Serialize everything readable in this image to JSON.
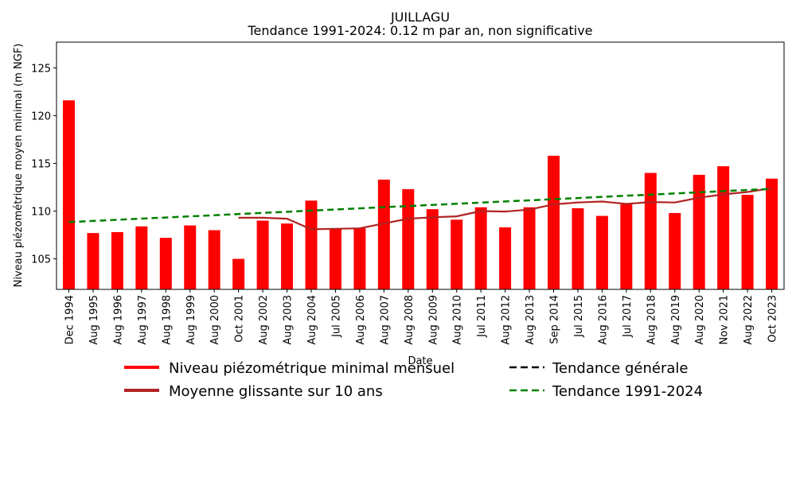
{
  "chart_data": {
    "type": "bar",
    "title": "JUILLAGU",
    "subtitle": "Tendance 1991-2024: 0.12 m par an, non significative",
    "xlabel": "Date",
    "ylabel": "Niveau piézométrique moyen minimal (m NGF)",
    "ylim": [
      101.8,
      127.7
    ],
    "yticks": [
      105,
      110,
      115,
      120,
      125
    ],
    "categories": [
      "Dec 1994",
      "Aug 1995",
      "Aug 1996",
      "Aug 1997",
      "Aug 1998",
      "Aug 1999",
      "Aug 2000",
      "Oct 2001",
      "Aug 2002",
      "Aug 2003",
      "Aug 2004",
      "Jul 2005",
      "Aug 2006",
      "Aug 2007",
      "Aug 2008",
      "Aug 2009",
      "Aug 2010",
      "Jul 2011",
      "Aug 2012",
      "Aug 2013",
      "Sep 2014",
      "Jul 2015",
      "Aug 2016",
      "Jul 2017",
      "Aug 2018",
      "Aug 2019",
      "Aug 2020",
      "Nov 2021",
      "Aug 2022",
      "Oct 2023"
    ],
    "series": [
      {
        "name": "Niveau piézométrique minimal mensuel",
        "kind": "bar",
        "color": "#ff0000",
        "values": [
          121.6,
          107.7,
          107.8,
          108.4,
          107.2,
          108.5,
          108.0,
          105.0,
          109.0,
          108.7,
          111.1,
          108.2,
          108.2,
          113.3,
          112.3,
          110.2,
          109.1,
          110.4,
          108.3,
          110.4,
          115.8,
          110.3,
          109.5,
          110.7,
          114.0,
          109.8,
          113.8,
          114.7,
          111.7,
          113.4
        ]
      },
      {
        "name": "Moyenne glissante sur 10 ans",
        "kind": "line",
        "color": "#b22222",
        "values": [
          null,
          null,
          null,
          null,
          null,
          null,
          null,
          109.3,
          109.3,
          109.2,
          108.1,
          108.15,
          108.2,
          108.7,
          109.2,
          109.35,
          109.45,
          110.0,
          109.95,
          110.15,
          110.7,
          110.9,
          111.0,
          110.75,
          110.95,
          110.9,
          111.4,
          111.75,
          112.0,
          112.4
        ]
      },
      {
        "name": "Tendance 1991-2024",
        "kind": "dashed-line",
        "color": "#008000",
        "values": [
          108.85,
          108.97,
          109.09,
          109.21,
          109.33,
          109.45,
          109.57,
          109.69,
          109.81,
          109.93,
          110.05,
          110.17,
          110.29,
          110.41,
          110.53,
          110.65,
          110.77,
          110.89,
          111.01,
          111.13,
          111.25,
          111.37,
          111.49,
          111.61,
          111.73,
          111.85,
          111.97,
          112.09,
          112.21,
          112.33
        ]
      }
    ],
    "legend": {
      "placement": "bottom",
      "entries": [
        {
          "label": "Niveau piézométrique minimal mensuel",
          "color": "#ff0000",
          "style": "solid"
        },
        {
          "label": "Moyenne glissante sur 10 ans",
          "color": "#b22222",
          "style": "solid"
        },
        {
          "label": "Tendance générale",
          "color": "#000000",
          "style": "dashed"
        },
        {
          "label": "Tendance 1991-2024",
          "color": "#008000",
          "style": "dashed"
        }
      ]
    }
  }
}
